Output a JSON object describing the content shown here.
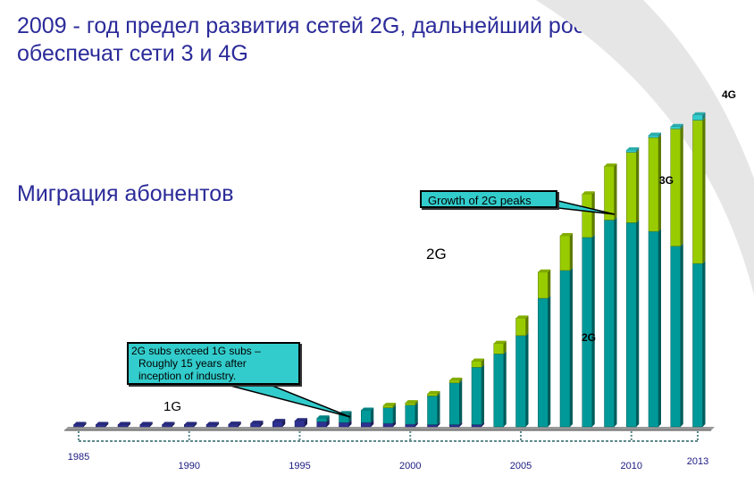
{
  "title": "2009 - год предел развития сетей 2G, дальнейший рост рынка обеспечат сети 3 и 4G",
  "subtitle": "Миграция абонентов",
  "colors": {
    "1G": "#2e3192",
    "2G": "#009999",
    "3G": "#99cc00",
    "4G": "#33cccc",
    "title": "#2b2b9a"
  },
  "chart_data": {
    "type": "bar",
    "stacked": true,
    "title": "",
    "xlabel": "",
    "ylabel": "",
    "categories": [
      "1985",
      "1986",
      "1987",
      "1988",
      "1989",
      "1990",
      "1991",
      "1992",
      "1993",
      "1994",
      "1995",
      "1996",
      "1997",
      "1998",
      "1999",
      "2000",
      "2001",
      "2002",
      "2003",
      "2004",
      "2005",
      "2006",
      "2007",
      "2008",
      "2009",
      "2010",
      "2011",
      "2012",
      "2013"
    ],
    "tick_labels": [
      "1985",
      "1990",
      "1995",
      "2000",
      "2005",
      "2010",
      "2013"
    ],
    "series": [
      {
        "name": "1G",
        "values": [
          1,
          1,
          1,
          1,
          1,
          1,
          2,
          3,
          4,
          6,
          7,
          6,
          5,
          5,
          4,
          3,
          1,
          1,
          1,
          0,
          0,
          0,
          0,
          0,
          0,
          0,
          0,
          0,
          0
        ]
      },
      {
        "name": "2G",
        "values": [
          0,
          0,
          0,
          0,
          0,
          0,
          0,
          0,
          0,
          0,
          0,
          4,
          10,
          14,
          18,
          22,
          33,
          48,
          66,
          84,
          105,
          148,
          180,
          218,
          238,
          235,
          225,
          208,
          188
        ]
      },
      {
        "name": "3G",
        "values": [
          0,
          0,
          0,
          0,
          0,
          0,
          0,
          0,
          0,
          0,
          0,
          0,
          0,
          0,
          1,
          1,
          1,
          3,
          7,
          12,
          20,
          30,
          40,
          50,
          62,
          81,
          108,
          135,
          165
        ]
      },
      {
        "name": "4G",
        "values": [
          0,
          0,
          0,
          0,
          0,
          0,
          0,
          0,
          0,
          0,
          0,
          0,
          0,
          0,
          0,
          0,
          0,
          0,
          0,
          0,
          0,
          0,
          0,
          0,
          0,
          1,
          1,
          2,
          6
        ]
      }
    ],
    "ylim": [
      0,
      370
    ],
    "labels": {
      "g1": "1G",
      "g2_big": "2G",
      "g2_small": "2G",
      "g3": "3G",
      "g4": "4G"
    },
    "annotations": {
      "exceed": "2G subs exceed 1G subs – Roughly 15 years after inception of industry.",
      "exceed_lines": [
        "2G subs exceed 1G subs –",
        "Roughly 15 years after",
        "inception of industry."
      ],
      "peak": "Growth of 2G peaks"
    }
  }
}
